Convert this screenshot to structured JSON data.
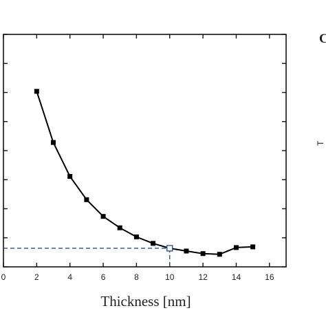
{
  "chart_data": {
    "type": "line",
    "title": "",
    "xlabel": "Thickness [nm]",
    "ylabel": "",
    "xlim": [
      0,
      17
    ],
    "ylim": [
      0,
      100
    ],
    "x_ticks": [
      0,
      2,
      4,
      6,
      8,
      10,
      12,
      14,
      16
    ],
    "x_tick_labels": [
      "0",
      "2",
      "4",
      "6",
      "8",
      "10",
      "12",
      "14",
      "16"
    ],
    "y_ticks": [
      0,
      12.5,
      25,
      37.5,
      50,
      62.5,
      75,
      87.5,
      100
    ],
    "grid": false,
    "legend": "none",
    "series": [
      {
        "x": [
          2,
          3,
          4,
          5,
          6,
          7,
          8,
          9,
          10,
          11,
          12,
          13,
          14,
          15
        ],
        "y": [
          75.5,
          53.5,
          38.9,
          28.9,
          21.7,
          16.8,
          12.9,
          10.1,
          8.0,
          6.8,
          5.7,
          5.4,
          8.3,
          8.6
        ],
        "color": "#000000"
      }
    ],
    "highlight_point": {
      "x": 10,
      "y": 8.0,
      "line_color": "#2e4a7a"
    }
  },
  "partial_labels": {
    "x_edge_tick": "0",
    "panel_letter": "C",
    "side_mark": "T"
  }
}
